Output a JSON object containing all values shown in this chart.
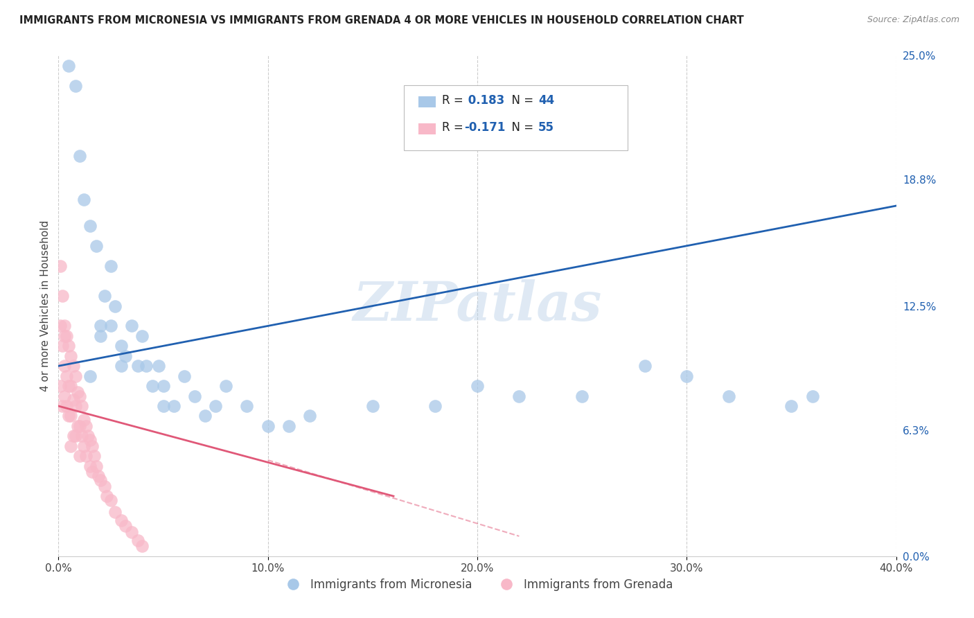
{
  "title": "IMMIGRANTS FROM MICRONESIA VS IMMIGRANTS FROM GRENADA 4 OR MORE VEHICLES IN HOUSEHOLD CORRELATION CHART",
  "source": "Source: ZipAtlas.com",
  "ylabel": "4 or more Vehicles in Household",
  "legend_label1": "Immigrants from Micronesia",
  "legend_label2": "Immigrants from Grenada",
  "R1": 0.183,
  "N1": 44,
  "R2": -0.171,
  "N2": 55,
  "color1": "#a8c8e8",
  "color2": "#f8b8c8",
  "trendline1_color": "#2060b0",
  "trendline2_color": "#e05878",
  "xlim": [
    0.0,
    0.4
  ],
  "ylim": [
    0.0,
    0.25
  ],
  "xticks": [
    0.0,
    0.1,
    0.2,
    0.3,
    0.4
  ],
  "xtick_labels": [
    "0.0%",
    "10.0%",
    "20.0%",
    "30.0%",
    "40.0%"
  ],
  "ytick_labels_right": [
    "25.0%",
    "18.8%",
    "12.5%",
    "6.3%",
    "0.0%"
  ],
  "ytick_vals_right": [
    0.25,
    0.188,
    0.125,
    0.063,
    0.0
  ],
  "watermark": "ZIPatlas",
  "background_color": "#ffffff",
  "micronesia_x": [
    0.005,
    0.008,
    0.01,
    0.012,
    0.015,
    0.018,
    0.02,
    0.022,
    0.025,
    0.025,
    0.027,
    0.03,
    0.032,
    0.035,
    0.038,
    0.04,
    0.042,
    0.045,
    0.048,
    0.05,
    0.055,
    0.06,
    0.065,
    0.07,
    0.075,
    0.08,
    0.09,
    0.1,
    0.11,
    0.12,
    0.15,
    0.18,
    0.2,
    0.22,
    0.25,
    0.28,
    0.3,
    0.32,
    0.35,
    0.36,
    0.015,
    0.02,
    0.03,
    0.05
  ],
  "micronesia_y": [
    0.245,
    0.235,
    0.2,
    0.178,
    0.165,
    0.155,
    0.115,
    0.13,
    0.145,
    0.115,
    0.125,
    0.105,
    0.1,
    0.115,
    0.095,
    0.11,
    0.095,
    0.085,
    0.095,
    0.085,
    0.075,
    0.09,
    0.08,
    0.07,
    0.075,
    0.085,
    0.075,
    0.065,
    0.065,
    0.07,
    0.075,
    0.075,
    0.085,
    0.08,
    0.08,
    0.095,
    0.09,
    0.08,
    0.075,
    0.08,
    0.09,
    0.11,
    0.095,
    0.075
  ],
  "grenada_x": [
    0.001,
    0.001,
    0.002,
    0.002,
    0.003,
    0.003,
    0.003,
    0.004,
    0.004,
    0.004,
    0.005,
    0.005,
    0.005,
    0.006,
    0.006,
    0.006,
    0.006,
    0.007,
    0.007,
    0.007,
    0.008,
    0.008,
    0.008,
    0.009,
    0.009,
    0.01,
    0.01,
    0.01,
    0.011,
    0.011,
    0.012,
    0.012,
    0.013,
    0.013,
    0.014,
    0.015,
    0.015,
    0.016,
    0.016,
    0.017,
    0.018,
    0.019,
    0.02,
    0.022,
    0.023,
    0.025,
    0.027,
    0.03,
    0.032,
    0.035,
    0.038,
    0.04,
    0.002,
    0.003,
    0.001
  ],
  "grenada_y": [
    0.115,
    0.085,
    0.105,
    0.075,
    0.115,
    0.095,
    0.08,
    0.11,
    0.09,
    0.075,
    0.105,
    0.085,
    0.07,
    0.1,
    0.085,
    0.07,
    0.055,
    0.095,
    0.078,
    0.06,
    0.09,
    0.075,
    0.06,
    0.082,
    0.065,
    0.08,
    0.065,
    0.05,
    0.075,
    0.06,
    0.068,
    0.055,
    0.065,
    0.05,
    0.06,
    0.058,
    0.045,
    0.055,
    0.042,
    0.05,
    0.045,
    0.04,
    0.038,
    0.035,
    0.03,
    0.028,
    0.022,
    0.018,
    0.015,
    0.012,
    0.008,
    0.005,
    0.13,
    0.11,
    0.145
  ],
  "trendline1_x": [
    0.0,
    0.4
  ],
  "trendline1_y": [
    0.095,
    0.175
  ],
  "trendline2_x": [
    0.0,
    0.16
  ],
  "trendline2_y": [
    0.075,
    0.03
  ]
}
